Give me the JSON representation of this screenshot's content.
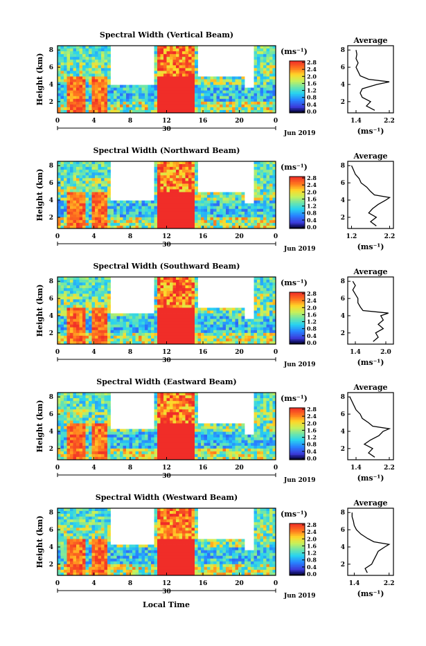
{
  "figure": {
    "xlabel": "Local Time",
    "date_label": "Jun 2019",
    "day_label": "30"
  },
  "chart_data": [
    {
      "type": "heatmap",
      "title": "Spectral Width (Vertical Beam)",
      "ylabel": "Height (km)",
      "units": "(ms⁻¹)",
      "x_ticks": [
        "0",
        "4",
        "8",
        "12",
        "16",
        "20",
        "0"
      ],
      "y_ticks": [
        "2",
        "4",
        "6",
        "8"
      ],
      "colorbar_ticks": [
        "0.0",
        "0.4",
        "0.8",
        "1.2",
        "1.6",
        "2.0",
        "2.4",
        "2.8"
      ],
      "clim": [
        0,
        3.0
      ],
      "profile": {
        "title": "Average",
        "xlabel": "(ms⁻¹)",
        "x_ticks": [
          "1.4",
          "2.2"
        ],
        "xlim": [
          1.2,
          2.3
        ],
        "y_ticks": [
          "2",
          "4",
          "6",
          "8"
        ],
        "height_km": [
          1.0,
          1.5,
          2.0,
          2.5,
          3.0,
          3.5,
          4.0,
          4.3,
          4.6,
          5.0,
          5.5,
          6.0,
          6.5,
          7.0,
          7.5,
          8.0
        ],
        "width_ms": [
          1.85,
          1.65,
          1.75,
          1.55,
          1.5,
          1.55,
          1.9,
          2.2,
          1.7,
          1.5,
          1.45,
          1.4,
          1.45,
          1.4,
          1.42,
          1.4
        ]
      }
    },
    {
      "type": "heatmap",
      "title": "Spectral Width (Northward Beam)",
      "ylabel": "Height (km)",
      "units": "(ms⁻¹)",
      "x_ticks": [
        "0",
        "4",
        "8",
        "12",
        "16",
        "20",
        "0"
      ],
      "y_ticks": [
        "2",
        "4",
        "6",
        "8"
      ],
      "colorbar_ticks": [
        "0.0",
        "0.4",
        "0.8",
        "1.2",
        "1.6",
        "2.0",
        "2.4",
        "2.8"
      ],
      "clim": [
        0,
        3.0
      ],
      "profile": {
        "title": "Average",
        "xlabel": "(ms⁻¹)",
        "x_ticks": [
          "1.2",
          "2.2"
        ],
        "xlim": [
          1.1,
          2.3
        ],
        "y_ticks": [
          "2",
          "4",
          "6",
          "8"
        ],
        "height_km": [
          1.0,
          1.5,
          2.0,
          2.5,
          3.0,
          3.5,
          4.0,
          4.3,
          4.6,
          5.0,
          5.5,
          6.0,
          6.5,
          7.0,
          7.5,
          8.0
        ],
        "width_ms": [
          1.85,
          1.7,
          1.85,
          1.65,
          1.75,
          1.9,
          2.1,
          2.2,
          1.8,
          1.7,
          1.6,
          1.45,
          1.4,
          1.3,
          1.25,
          1.2
        ]
      }
    },
    {
      "type": "heatmap",
      "title": "Spectral Width (Southward Beam)",
      "ylabel": "Height (km)",
      "units": "(ms⁻¹)",
      "x_ticks": [
        "0",
        "4",
        "8",
        "12",
        "16",
        "20",
        "0"
      ],
      "y_ticks": [
        "2",
        "4",
        "6",
        "8"
      ],
      "colorbar_ticks": [
        "0.0",
        "0.4",
        "0.8",
        "1.2",
        "1.6",
        "2.0",
        "2.4",
        "2.8"
      ],
      "clim": [
        0,
        3.0
      ],
      "profile": {
        "title": "Average",
        "xlabel": "(ms⁻¹)",
        "x_ticks": [
          "1.4",
          "2.0"
        ],
        "xlim": [
          1.25,
          2.15
        ],
        "y_ticks": [
          "2",
          "4",
          "6",
          "8"
        ],
        "height_km": [
          1.0,
          1.5,
          2.0,
          2.5,
          3.0,
          3.5,
          4.0,
          4.3,
          4.6,
          5.0,
          5.5,
          6.0,
          6.5,
          7.0,
          7.5,
          8.0
        ],
        "width_ms": [
          1.75,
          1.85,
          1.8,
          1.95,
          1.85,
          1.95,
          1.9,
          2.05,
          1.55,
          1.5,
          1.45,
          1.45,
          1.4,
          1.35,
          1.4,
          1.35
        ]
      }
    },
    {
      "type": "heatmap",
      "title": "Spectral Width (Eastward Beam)",
      "ylabel": "Height (km)",
      "units": "(ms⁻¹)",
      "x_ticks": [
        "0",
        "4",
        "8",
        "12",
        "16",
        "20",
        "0"
      ],
      "y_ticks": [
        "2",
        "4",
        "6",
        "8"
      ],
      "colorbar_ticks": [
        "0.0",
        "0.4",
        "0.8",
        "1.2",
        "1.6",
        "2.0",
        "2.4",
        "2.8"
      ],
      "clim": [
        0,
        3.0
      ],
      "profile": {
        "title": "Average",
        "xlabel": "(ms⁻¹)",
        "x_ticks": [
          "1.4",
          "2.2"
        ],
        "xlim": [
          1.2,
          2.3
        ],
        "y_ticks": [
          "2",
          "4",
          "6",
          "8"
        ],
        "height_km": [
          1.0,
          1.5,
          2.0,
          2.5,
          3.0,
          3.5,
          4.0,
          4.3,
          4.6,
          5.0,
          5.5,
          6.0,
          6.5,
          7.0,
          7.5,
          8.0
        ],
        "width_ms": [
          1.85,
          1.7,
          1.8,
          1.6,
          1.75,
          1.95,
          2.05,
          2.2,
          1.8,
          1.7,
          1.55,
          1.5,
          1.4,
          1.35,
          1.3,
          1.25
        ]
      }
    },
    {
      "type": "heatmap",
      "title": "Spectral Width (Westward Beam)",
      "ylabel": "Height (km)",
      "units": "(ms⁻¹)",
      "x_ticks": [
        "0",
        "4",
        "8",
        "12",
        "16",
        "20",
        "0"
      ],
      "y_ticks": [
        "2",
        "4",
        "6",
        "8"
      ],
      "colorbar_ticks": [
        "0.0",
        "0.4",
        "0.8",
        "1.2",
        "1.6",
        "2.0",
        "2.4",
        "2.8"
      ],
      "clim": [
        0,
        3.0
      ],
      "profile": {
        "title": "Average",
        "xlabel": "(ms⁻¹)",
        "x_ticks": [
          "1.4",
          "2.2"
        ],
        "xlim": [
          1.25,
          2.3
        ],
        "y_ticks": [
          "2",
          "4",
          "6",
          "8"
        ],
        "height_km": [
          1.0,
          1.5,
          2.0,
          2.5,
          3.0,
          3.5,
          4.0,
          4.3,
          4.6,
          5.0,
          5.5,
          6.0,
          6.5,
          7.0,
          7.5,
          8.0
        ],
        "width_ms": [
          1.7,
          1.65,
          1.8,
          1.85,
          1.9,
          1.95,
          2.1,
          2.2,
          1.85,
          1.7,
          1.55,
          1.45,
          1.4,
          1.38,
          1.35,
          1.35
        ]
      }
    }
  ]
}
